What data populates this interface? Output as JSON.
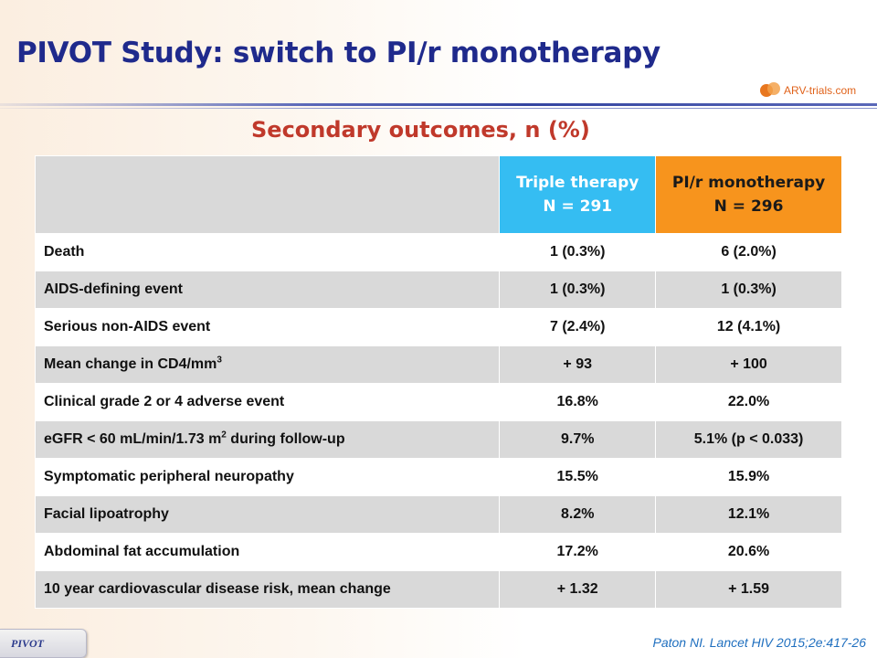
{
  "title": "PIVOT Study: switch to PI/r monotherapy",
  "logo": {
    "text": "ARV-trials.com"
  },
  "subtitle": "Secondary outcomes, n (%)",
  "table": {
    "col1": {
      "line1": "Triple therapy",
      "line2": "N = 291",
      "color": "#35bdf2"
    },
    "col2": {
      "line1": "PI/r monotherapy",
      "line2": "N = 296",
      "color": "#f7941d"
    },
    "rows": [
      {
        "label": "Death",
        "v1": "1 (0.3%)",
        "v2": "6 (2.0%)"
      },
      {
        "label": "AIDS-defining event",
        "v1": "1 (0.3%)",
        "v2": "1 (0.3%)"
      },
      {
        "label": "Serious non-AIDS event",
        "v1": "7 (2.4%)",
        "v2": "12 (4.1%)"
      },
      {
        "label": "Mean change in CD4/mm",
        "sup": "3",
        "v1": "+ 93",
        "v2": "+ 100"
      },
      {
        "label": "Clinical grade 2 or 4 adverse event",
        "v1": "16.8%",
        "v2": "22.0%"
      },
      {
        "label": "eGFR < 60 mL/min/1.73 m",
        "sup": "2",
        "label_after": " during follow-up",
        "v1": "9.7%",
        "v2": "5.1% (p < 0.033)"
      },
      {
        "label": "Symptomatic peripheral neuropathy",
        "v1": "15.5%",
        "v2": "15.9%"
      },
      {
        "label": "Facial lipoatrophy",
        "v1": "8.2%",
        "v2": "12.1%"
      },
      {
        "label": "Abdominal fat accumulation",
        "v1": "17.2%",
        "v2": "20.6%"
      },
      {
        "label": "10 year cardiovascular disease risk, mean change",
        "v1": "+ 1.32",
        "v2": "+ 1.59"
      }
    ]
  },
  "footer": {
    "tab_label": "PIVOT",
    "citation": "Paton NI. Lancet HIV 2015;2e:417-26"
  }
}
